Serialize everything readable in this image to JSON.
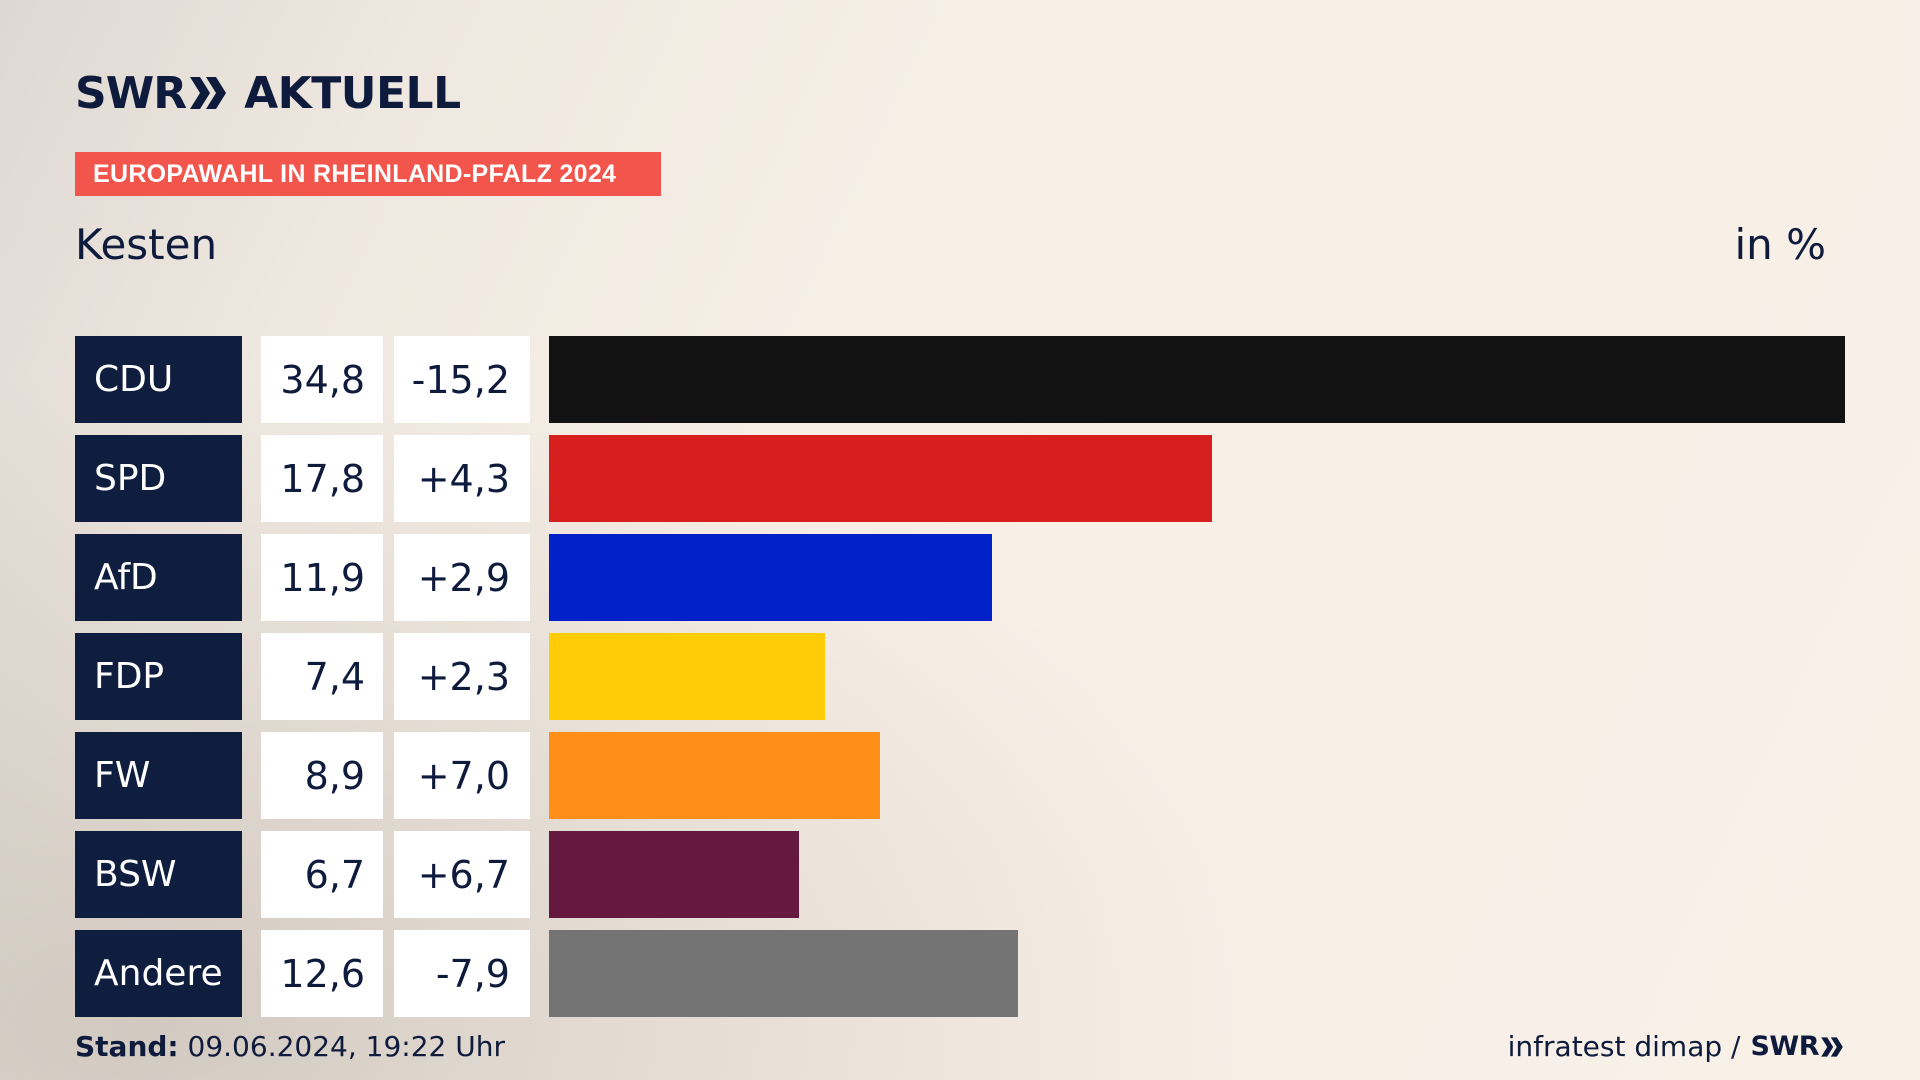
{
  "header": {
    "logo_swr": "SWR",
    "logo_brand": "AKTUELL",
    "badge": "EUROPAWAHL IN RHEINLAND-PFALZ 2024",
    "region": "Kesten",
    "unit": "in %"
  },
  "footer": {
    "stand_label": "Stand:",
    "stand_value": "09.06.2024, 19:22 Uhr",
    "source": "infratest dimap /",
    "source_brand": "SWR"
  },
  "colors": {
    "badge": "#f2554b",
    "party_box": "#0f1d3f"
  },
  "chart_data": {
    "type": "bar",
    "orientation": "horizontal",
    "categories": [
      "CDU",
      "SPD",
      "AfD",
      "FDP",
      "FW",
      "BSW",
      "Andere"
    ],
    "values": [
      34.8,
      17.8,
      11.9,
      7.4,
      8.9,
      6.7,
      12.6
    ],
    "value_labels": [
      "34,8",
      "17,8",
      "11,9",
      "7,4",
      "8,9",
      "6,7",
      "12,6"
    ],
    "diff_labels": [
      "-15,2",
      "+4,3",
      "+2,9",
      "+2,3",
      "+7,0",
      "+6,7",
      "-7,9"
    ],
    "bar_colors": [
      "#121212",
      "#d71f1f",
      "#0021c7",
      "#ffcc07",
      "#ff8f19",
      "#65193e",
      "#747474"
    ],
    "xlim": [
      0,
      34.8
    ],
    "grid": false,
    "legend": "none"
  }
}
